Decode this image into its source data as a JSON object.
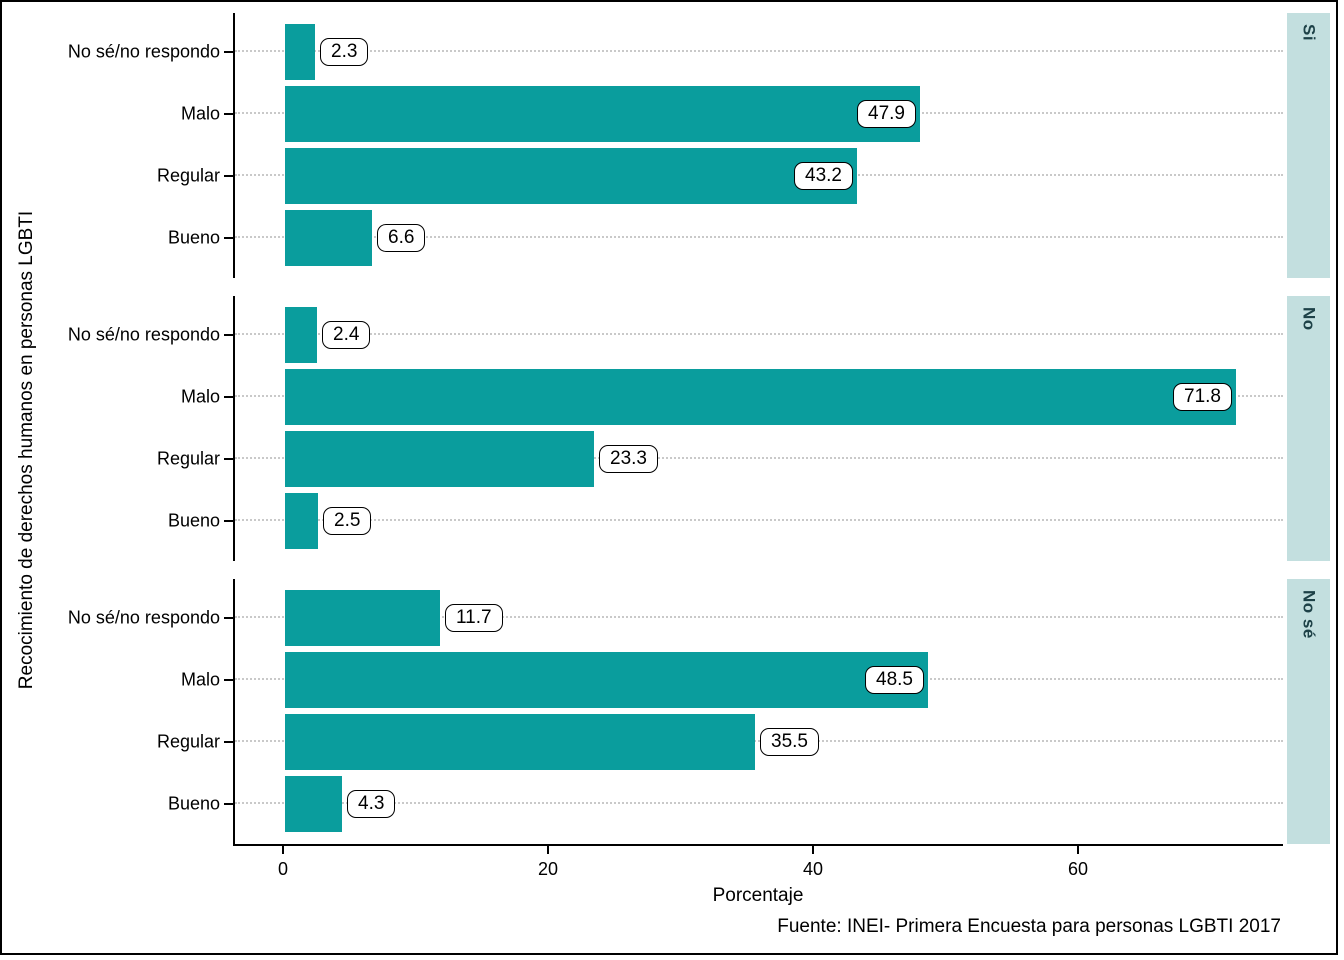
{
  "chart_data": {
    "type": "bar",
    "orientation": "horizontal",
    "xlabel": "Porcentaje",
    "ylabel": "Recocimiento de derechos humanos en personas LGBTI",
    "caption": "Fuente: INEI- Primera Encuesta para personas LGBTI 2017",
    "categories": [
      "No sé/no respondo",
      "Malo",
      "Regular",
      "Bueno"
    ],
    "x_ticks": [
      0,
      20,
      40,
      60
    ],
    "xlim": [
      0,
      75
    ],
    "grid": "horizontal-dotted",
    "legend": "none",
    "facet_strip_position": "right",
    "facets": [
      {
        "label": "Si",
        "values": [
          2.3,
          47.9,
          43.2,
          6.6
        ]
      },
      {
        "label": "No",
        "values": [
          2.4,
          71.8,
          23.3,
          2.5
        ]
      },
      {
        "label": "No sé",
        "values": [
          11.7,
          48.5,
          35.5,
          4.3
        ]
      }
    ],
    "colors": {
      "bar": "#0a9d9d",
      "strip_bg": "#c3dfdf",
      "strip_text": "#1d4147",
      "grid": "#c9c9c9",
      "axis": "#000000",
      "text": "#000000",
      "label_box_bg": "#ffffff",
      "label_box_border": "#000000"
    }
  }
}
